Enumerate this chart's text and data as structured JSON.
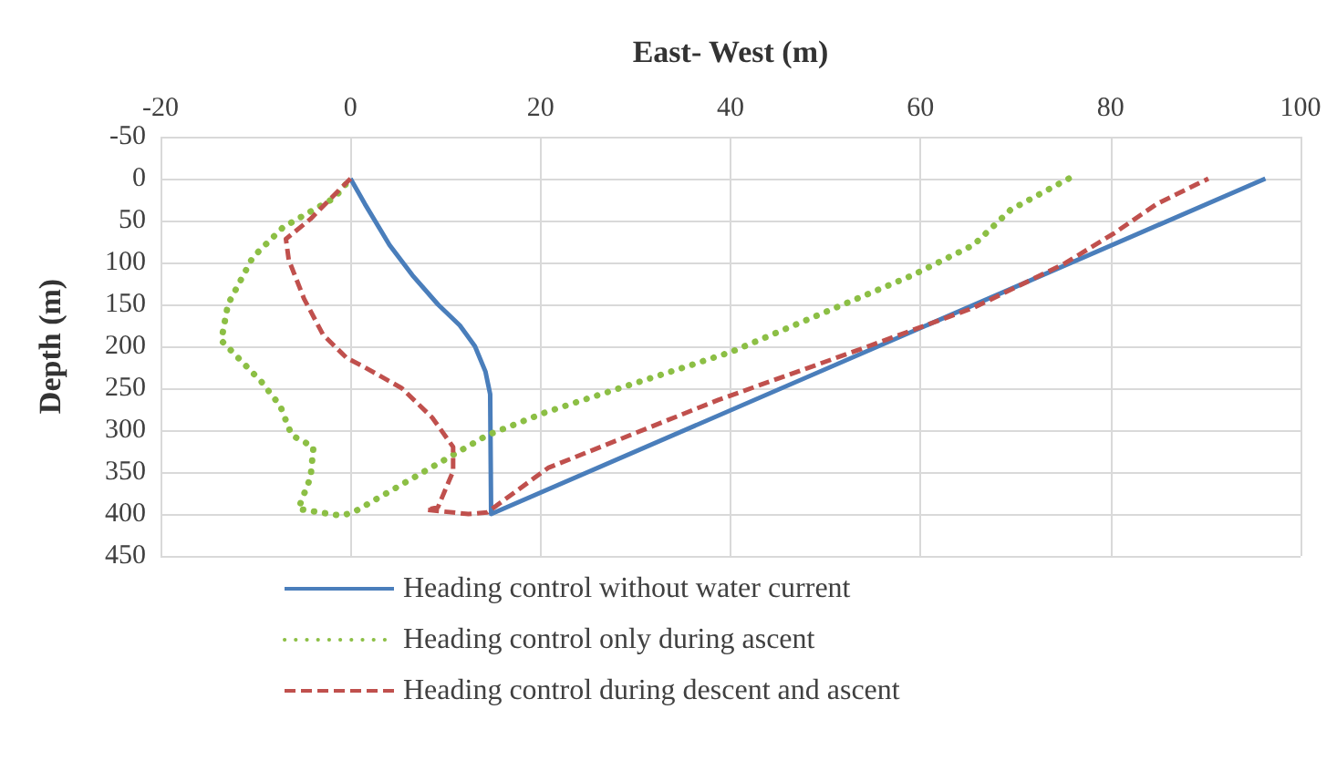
{
  "chart_data": {
    "type": "line",
    "xlabel": "East- West (m)",
    "ylabel": "Depth (m)",
    "xlim": [
      -20,
      100
    ],
    "xticks": [
      -20,
      0,
      20,
      40,
      60,
      80,
      100
    ],
    "ylim": [
      450,
      -50
    ],
    "yticks": [
      -50,
      0,
      50,
      100,
      150,
      200,
      250,
      300,
      350,
      400,
      450
    ],
    "grid": true,
    "legend": "bottom",
    "marker": "none",
    "series": [
      {
        "name": "Heading control without water current",
        "color": "#4a7ebb",
        "line_style": "solid",
        "x": [
          0,
          1.5,
          4.1,
          6.5,
          9.2,
          11.5,
          13.1,
          14.2,
          14.7,
          14.8,
          96.3
        ],
        "values": [
          0,
          30,
          79,
          115,
          150,
          175,
          200,
          230,
          257,
          400,
          0
        ]
      },
      {
        "name": "Heading control only during ascent",
        "color": "#8cbf45",
        "line_style": "dotted",
        "x": [
          75.6,
          69.5,
          65.6,
          59.2,
          40,
          20.7,
          14.4,
          0.3,
          -1,
          -5.5,
          -4.2,
          -3.9,
          -6.2,
          -7.4,
          -9.4,
          -13.6,
          -12.9,
          -10.3,
          -7.1,
          -1.7,
          0
        ],
        "values": [
          0,
          37,
          79,
          115,
          207,
          278,
          306,
          398,
          402,
          394,
          356,
          320,
          306,
          271,
          242,
          193,
          150,
          94,
          58,
          23,
          0
        ]
      },
      {
        "name": "Heading control during descent and ascent",
        "color": "#c0504d",
        "line_style": "dashed",
        "x": [
          0,
          -4.2,
          -6.8,
          -6.5,
          -4.9,
          -2.9,
          -0.4,
          1.5,
          5.4,
          8.6,
          10.8,
          10.8,
          9.2,
          8,
          12.4,
          14.4,
          20.8,
          38.7,
          52.8,
          65.6,
          75.2,
          80.4,
          84.9,
          90.3
        ],
        "values": [
          0,
          48,
          72,
          97,
          143,
          186,
          214,
          225,
          250,
          285,
          320,
          349,
          392,
          395,
          400,
          398,
          345,
          264,
          207,
          154,
          101,
          65,
          30,
          0
        ]
      }
    ]
  }
}
